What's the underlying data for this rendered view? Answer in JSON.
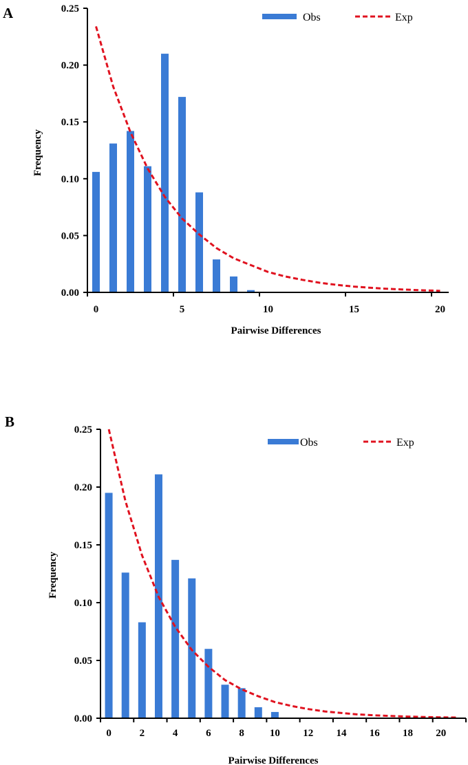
{
  "colors": {
    "obs": "#3a7bd5",
    "exp": "#e0121f",
    "axis": "#000000"
  },
  "chart_data": [
    {
      "panel": "A",
      "type": "bar",
      "title": "",
      "xlabel": "Pairwise Differences",
      "ylabel": "Frequency",
      "ylim": [
        0,
        0.25
      ],
      "yticks": [
        "0.00",
        "0.05",
        "0.10",
        "0.15",
        "0.20",
        "0.25"
      ],
      "x_categories": [
        0,
        1,
        2,
        3,
        4,
        5,
        6,
        7,
        8,
        9,
        10,
        11,
        12,
        13,
        14,
        15,
        16,
        17,
        18,
        19,
        20
      ],
      "xtick_labels": [
        {
          "category": 0,
          "label": "0"
        },
        {
          "category": 5,
          "label": "5"
        },
        {
          "category": 10,
          "label": "10"
        },
        {
          "category": 15,
          "label": "15"
        },
        {
          "category": 20,
          "label": "20"
        }
      ],
      "xtick_every": 5,
      "legend": {
        "placement": "top-right",
        "entries": [
          "Obs",
          "Exp"
        ]
      },
      "series": [
        {
          "name": "Obs",
          "type": "bar",
          "x": [
            0,
            1,
            2,
            3,
            4,
            5,
            6,
            7,
            8,
            9
          ],
          "values": [
            0.106,
            0.131,
            0.142,
            0.111,
            0.21,
            0.172,
            0.088,
            0.029,
            0.014,
            0.002
          ]
        },
        {
          "name": "Exp",
          "type": "line",
          "style": "dashed",
          "x": [
            0,
            1,
            2,
            3,
            4,
            5,
            6,
            7,
            8,
            9,
            10,
            11,
            12,
            13,
            14,
            15,
            16,
            17,
            18,
            19,
            20
          ],
          "values": [
            0.234,
            0.181,
            0.141,
            0.109,
            0.084,
            0.065,
            0.051,
            0.039,
            0.03,
            0.024,
            0.018,
            0.014,
            0.011,
            0.0085,
            0.0066,
            0.0051,
            0.004,
            0.0031,
            0.0024,
            0.0018,
            0.0014
          ]
        }
      ]
    },
    {
      "panel": "B",
      "type": "bar",
      "title": "",
      "xlabel": "Pairwise Differences",
      "ylabel": "Frequency",
      "ylim": [
        0,
        0.25
      ],
      "yticks": [
        "0.00",
        "0.05",
        "0.10",
        "0.15",
        "0.20",
        "0.25"
      ],
      "x_categories": [
        0,
        1,
        2,
        3,
        4,
        5,
        6,
        7,
        8,
        9,
        10,
        11,
        12,
        13,
        14,
        15,
        16,
        17,
        18,
        19,
        20,
        21
      ],
      "xtick_labels": [
        {
          "category": 0,
          "label": "0"
        },
        {
          "category": 2,
          "label": "2"
        },
        {
          "category": 4,
          "label": "4"
        },
        {
          "category": 6,
          "label": "6"
        },
        {
          "category": 8,
          "label": "8"
        },
        {
          "category": 10,
          "label": "10"
        },
        {
          "category": 12,
          "label": "12"
        },
        {
          "category": 14,
          "label": "14"
        },
        {
          "category": 16,
          "label": "16"
        },
        {
          "category": 18,
          "label": "18"
        },
        {
          "category": 20,
          "label": "20"
        }
      ],
      "xtick_every": 2,
      "legend": {
        "placement": "top-right",
        "entries": [
          "Obs",
          "Exp"
        ]
      },
      "series": [
        {
          "name": "Obs",
          "type": "bar",
          "x": [
            0,
            1,
            2,
            3,
            4,
            5,
            6,
            7,
            8,
            9,
            10
          ],
          "values": [
            0.195,
            0.126,
            0.083,
            0.211,
            0.137,
            0.121,
            0.06,
            0.029,
            0.026,
            0.0095,
            0.0054
          ]
        },
        {
          "name": "Exp",
          "type": "line",
          "style": "dashed",
          "x": [
            0,
            1,
            2,
            3,
            4,
            5,
            6,
            7,
            8,
            9,
            10,
            11,
            12,
            13,
            14,
            15,
            16,
            17,
            18,
            19,
            20,
            21
          ],
          "values": [
            0.25,
            0.188,
            0.141,
            0.105,
            0.079,
            0.059,
            0.0445,
            0.033,
            0.025,
            0.019,
            0.014,
            0.0106,
            0.0079,
            0.0059,
            0.0045,
            0.0033,
            0.0025,
            0.0019,
            0.0014,
            0.0011,
            0.0008,
            0.0006
          ]
        }
      ]
    }
  ]
}
